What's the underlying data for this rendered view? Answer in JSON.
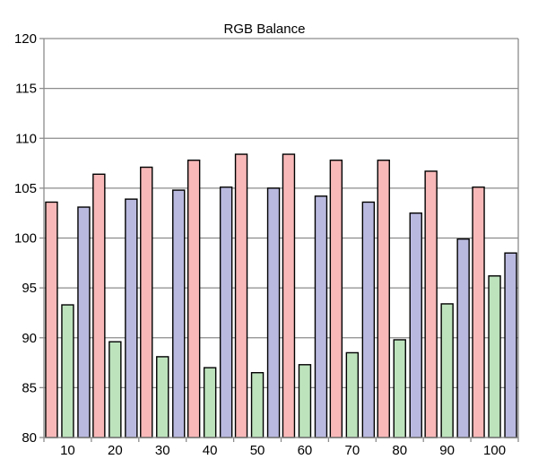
{
  "chart_data": {
    "type": "bar",
    "title": "RGB Balance",
    "xlabel": "",
    "ylabel": "",
    "ylim": [
      80,
      120
    ],
    "yticks": [
      80,
      85,
      90,
      95,
      100,
      105,
      110,
      115,
      120
    ],
    "grid": true,
    "legend": "none",
    "categories": [
      "10",
      "20",
      "30",
      "40",
      "50",
      "60",
      "70",
      "80",
      "90",
      "100"
    ],
    "series": [
      {
        "color": "#f8b8b8",
        "values": [
          103.6,
          106.4,
          107.1,
          107.8,
          108.4,
          108.4,
          107.8,
          107.8,
          106.7,
          105.1
        ]
      },
      {
        "color": "#bde3bd",
        "values": [
          93.3,
          89.6,
          88.1,
          87.0,
          86.5,
          87.3,
          88.5,
          89.8,
          93.4,
          96.2
        ]
      },
      {
        "color": "#b9b9e0",
        "values": [
          103.1,
          103.9,
          104.8,
          105.1,
          105.0,
          104.2,
          103.6,
          102.5,
          99.9,
          98.5
        ]
      }
    ]
  }
}
